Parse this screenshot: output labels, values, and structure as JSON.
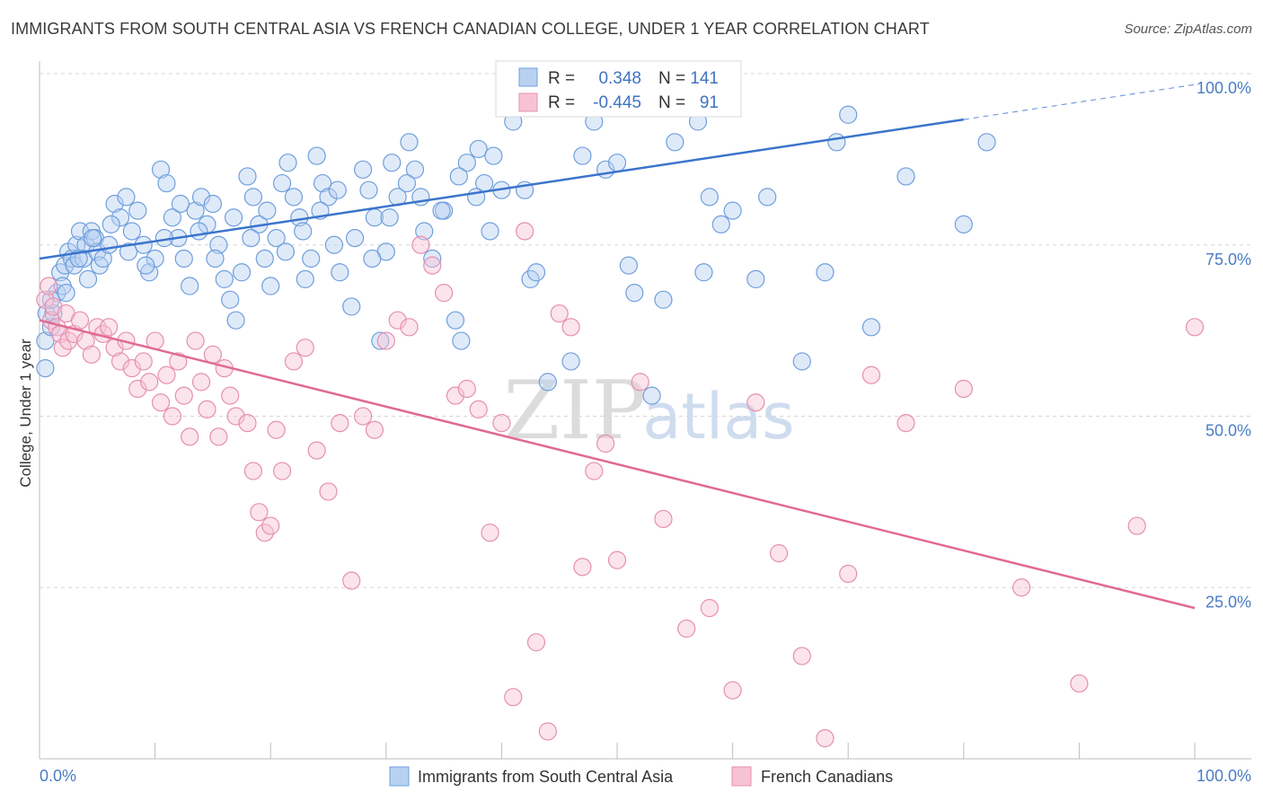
{
  "chart_data": {
    "type": "scatter",
    "title": "IMMIGRANTS FROM SOUTH CENTRAL ASIA VS FRENCH CANADIAN COLLEGE, UNDER 1 YEAR CORRELATION CHART",
    "source": "Source: ZipAtlas.com",
    "xlabel": "",
    "ylabel": "College, Under 1 year",
    "xlim": [
      0,
      100
    ],
    "ylim": [
      0,
      100
    ],
    "x_tick_labels": [
      "0.0%",
      "100.0%"
    ],
    "y_tick_labels": [
      "25.0%",
      "50.0%",
      "75.0%",
      "100.0%"
    ],
    "y_ticks": [
      25,
      50,
      75,
      100
    ],
    "watermark": {
      "zip": "ZIP",
      "atlas": "atlas"
    },
    "legend_box": {
      "r_label": "R =",
      "n_label": "N =",
      "rows": [
        {
          "r": "0.348",
          "n": "141"
        },
        {
          "r": "-0.445",
          "n": "91"
        }
      ]
    },
    "series": [
      {
        "name": "Immigrants from South Central Asia",
        "color": "#6f9fdc",
        "fill": "#b9d1f1",
        "line_color": "#3a74cc",
        "trend": {
          "x0": 0,
          "y0": 73,
          "x1": 80,
          "y1": 93.3,
          "x_ext": 100,
          "y_ext": 98.4
        },
        "points": [
          [
            0.5,
            57
          ],
          [
            0.5,
            61
          ],
          [
            0.6,
            65
          ],
          [
            1,
            63
          ],
          [
            1.2,
            65
          ],
          [
            1.5,
            68
          ],
          [
            1.8,
            71
          ],
          [
            2,
            69
          ],
          [
            2.2,
            72
          ],
          [
            2.5,
            74
          ],
          [
            2.8,
            73
          ],
          [
            3,
            72
          ],
          [
            3.2,
            75
          ],
          [
            3.5,
            77
          ],
          [
            3.8,
            73
          ],
          [
            4,
            75
          ],
          [
            4.2,
            70
          ],
          [
            4.5,
            77
          ],
          [
            4.8,
            76
          ],
          [
            5,
            74
          ],
          [
            5.2,
            72
          ],
          [
            5.5,
            73
          ],
          [
            6,
            75
          ],
          [
            6.5,
            81
          ],
          [
            7,
            79
          ],
          [
            7.5,
            82
          ],
          [
            8,
            77
          ],
          [
            8.5,
            80
          ],
          [
            9,
            75
          ],
          [
            9.5,
            71
          ],
          [
            10,
            73
          ],
          [
            10.5,
            86
          ],
          [
            11,
            84
          ],
          [
            11.5,
            79
          ],
          [
            12,
            76
          ],
          [
            12.5,
            73
          ],
          [
            13,
            69
          ],
          [
            13.5,
            80
          ],
          [
            14,
            82
          ],
          [
            14.5,
            78
          ],
          [
            15,
            81
          ],
          [
            15.5,
            75
          ],
          [
            16,
            70
          ],
          [
            16.5,
            67
          ],
          [
            17,
            64
          ],
          [
            17.5,
            71
          ],
          [
            18,
            85
          ],
          [
            18.5,
            82
          ],
          [
            19,
            78
          ],
          [
            19.5,
            73
          ],
          [
            20,
            69
          ],
          [
            20.5,
            76
          ],
          [
            21,
            84
          ],
          [
            21.5,
            87
          ],
          [
            22,
            82
          ],
          [
            22.5,
            79
          ],
          [
            23,
            70
          ],
          [
            23.5,
            73
          ],
          [
            24,
            88
          ],
          [
            24.5,
            84
          ],
          [
            25,
            82
          ],
          [
            25.5,
            75
          ],
          [
            26,
            71
          ],
          [
            27,
            66
          ],
          [
            28,
            86
          ],
          [
            28.5,
            83
          ],
          [
            29,
            79
          ],
          [
            29.5,
            61
          ],
          [
            30,
            74
          ],
          [
            30.5,
            87
          ],
          [
            31,
            82
          ],
          [
            32,
            90
          ],
          [
            32.5,
            86
          ],
          [
            33,
            82
          ],
          [
            34,
            73
          ],
          [
            35,
            80
          ],
          [
            36,
            64
          ],
          [
            36.5,
            61
          ],
          [
            37,
            87
          ],
          [
            38,
            89
          ],
          [
            38.5,
            84
          ],
          [
            39,
            77
          ],
          [
            40,
            83
          ],
          [
            41,
            93
          ],
          [
            42,
            83
          ],
          [
            42.5,
            70
          ],
          [
            43,
            71
          ],
          [
            44,
            55
          ],
          [
            46,
            58
          ],
          [
            47,
            88
          ],
          [
            48,
            93
          ],
          [
            49,
            86
          ],
          [
            50,
            87
          ],
          [
            51,
            72
          ],
          [
            51.5,
            68
          ],
          [
            53,
            53
          ],
          [
            54,
            67
          ],
          [
            55,
            90
          ],
          [
            56,
            95
          ],
          [
            57,
            93
          ],
          [
            57.5,
            71
          ],
          [
            58,
            82
          ],
          [
            59,
            78
          ],
          [
            60,
            80
          ],
          [
            62,
            70
          ],
          [
            63,
            82
          ],
          [
            66,
            58
          ],
          [
            68,
            71
          ],
          [
            69,
            90
          ],
          [
            70,
            94
          ],
          [
            72,
            63
          ],
          [
            75,
            85
          ],
          [
            80,
            78
          ],
          [
            82,
            90
          ],
          [
            1,
            67
          ],
          [
            2.3,
            68
          ],
          [
            3.4,
            73
          ],
          [
            4.6,
            76
          ],
          [
            6.2,
            78
          ],
          [
            7.7,
            74
          ],
          [
            9.2,
            72
          ],
          [
            10.8,
            76
          ],
          [
            12.2,
            81
          ],
          [
            13.8,
            77
          ],
          [
            15.2,
            73
          ],
          [
            16.8,
            79
          ],
          [
            18.3,
            76
          ],
          [
            19.7,
            80
          ],
          [
            21.3,
            74
          ],
          [
            22.8,
            77
          ],
          [
            24.3,
            80
          ],
          [
            25.8,
            83
          ],
          [
            27.3,
            76
          ],
          [
            28.8,
            73
          ],
          [
            30.3,
            79
          ],
          [
            31.8,
            84
          ],
          [
            33.3,
            77
          ],
          [
            34.8,
            80
          ],
          [
            36.3,
            85
          ],
          [
            37.8,
            82
          ],
          [
            39.3,
            88
          ]
        ]
      },
      {
        "name": "French Canadians",
        "color": "#e58fb0",
        "fill": "#f7c3d4",
        "line_color": "#e06a94",
        "trend": {
          "x0": 0,
          "y0": 64,
          "x1": 100,
          "y1": 22
        },
        "points": [
          [
            0.5,
            67
          ],
          [
            0.8,
            69
          ],
          [
            1,
            64
          ],
          [
            1.2,
            66
          ],
          [
            1.5,
            63
          ],
          [
            1.8,
            62
          ],
          [
            2,
            60
          ],
          [
            2.3,
            65
          ],
          [
            2.5,
            61
          ],
          [
            3,
            62
          ],
          [
            3.5,
            64
          ],
          [
            4,
            61
          ],
          [
            4.5,
            59
          ],
          [
            5,
            63
          ],
          [
            5.5,
            62
          ],
          [
            6,
            63
          ],
          [
            6.5,
            60
          ],
          [
            7,
            58
          ],
          [
            7.5,
            61
          ],
          [
            8,
            57
          ],
          [
            8.5,
            54
          ],
          [
            9,
            58
          ],
          [
            9.5,
            55
          ],
          [
            10,
            61
          ],
          [
            10.5,
            52
          ],
          [
            11,
            56
          ],
          [
            11.5,
            50
          ],
          [
            12,
            58
          ],
          [
            12.5,
            53
          ],
          [
            13,
            47
          ],
          [
            13.5,
            61
          ],
          [
            14,
            55
          ],
          [
            14.5,
            51
          ],
          [
            15,
            59
          ],
          [
            15.5,
            47
          ],
          [
            16,
            57
          ],
          [
            16.5,
            53
          ],
          [
            17,
            50
          ],
          [
            18,
            49
          ],
          [
            18.5,
            42
          ],
          [
            19,
            36
          ],
          [
            19.5,
            33
          ],
          [
            20,
            34
          ],
          [
            20.5,
            48
          ],
          [
            21,
            42
          ],
          [
            22,
            58
          ],
          [
            23,
            60
          ],
          [
            24,
            45
          ],
          [
            25,
            39
          ],
          [
            26,
            49
          ],
          [
            27,
            26
          ],
          [
            28,
            50
          ],
          [
            29,
            48
          ],
          [
            30,
            61
          ],
          [
            31,
            64
          ],
          [
            32,
            63
          ],
          [
            33,
            75
          ],
          [
            34,
            72
          ],
          [
            35,
            68
          ],
          [
            36,
            53
          ],
          [
            37,
            54
          ],
          [
            38,
            51
          ],
          [
            39,
            33
          ],
          [
            40,
            49
          ],
          [
            41,
            9
          ],
          [
            42,
            77
          ],
          [
            43,
            17
          ],
          [
            44,
            4
          ],
          [
            45,
            65
          ],
          [
            46,
            63
          ],
          [
            47,
            28
          ],
          [
            48,
            42
          ],
          [
            49,
            46
          ],
          [
            50,
            29
          ],
          [
            52,
            55
          ],
          [
            54,
            35
          ],
          [
            56,
            19
          ],
          [
            58,
            22
          ],
          [
            60,
            10
          ],
          [
            62,
            52
          ],
          [
            64,
            30
          ],
          [
            66,
            15
          ],
          [
            68,
            3
          ],
          [
            70,
            27
          ],
          [
            72,
            56
          ],
          [
            75,
            49
          ],
          [
            80,
            54
          ],
          [
            85,
            25
          ],
          [
            90,
            11
          ],
          [
            95,
            34
          ],
          [
            100,
            63
          ]
        ]
      }
    ]
  }
}
